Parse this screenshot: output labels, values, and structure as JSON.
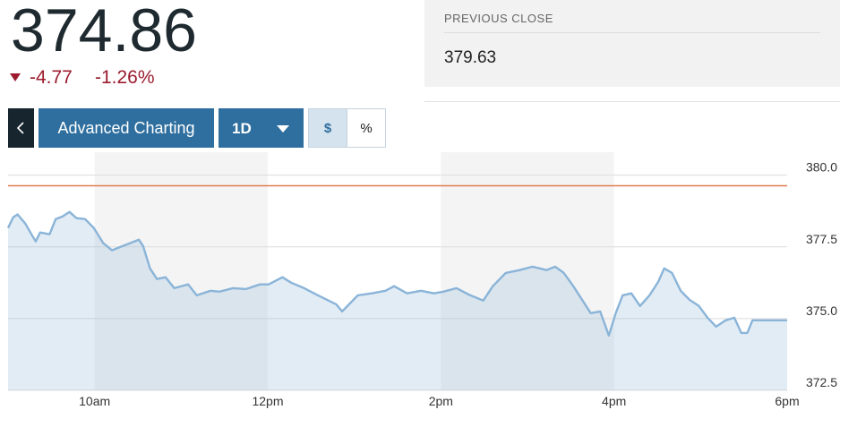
{
  "quote": {
    "last": 374.86,
    "change": -4.77,
    "change_percent": "-1.26%",
    "previous_close_label": "PREVIOUS CLOSE",
    "previous_close": 379.63
  },
  "toolbar": {
    "advanced": "Advanced Charting",
    "range": "1D",
    "dollar": "$",
    "percent": "%"
  },
  "chart_data": {
    "type": "line",
    "x": [
      9.0,
      9.06,
      9.11,
      9.2,
      9.27,
      9.32,
      9.37,
      9.48,
      9.55,
      9.63,
      9.71,
      9.79,
      9.89,
      9.99,
      10.1,
      10.2,
      10.3,
      10.41,
      10.51,
      10.56,
      10.64,
      10.72,
      10.82,
      10.92,
      11.08,
      11.18,
      11.34,
      11.44,
      11.6,
      11.75,
      11.91,
      12.01,
      12.17,
      12.27,
      12.42,
      12.58,
      12.68,
      12.79,
      12.86,
      12.94,
      13.04,
      13.2,
      13.36,
      13.46,
      13.61,
      13.77,
      13.92,
      14.03,
      14.18,
      14.34,
      14.49,
      14.6,
      14.75,
      14.91,
      15.06,
      15.22,
      15.32,
      15.42,
      15.53,
      15.63,
      15.73,
      15.84,
      15.94,
      16.02,
      16.1,
      16.2,
      16.3,
      16.41,
      16.51,
      16.58,
      16.67,
      16.77,
      16.87,
      16.98,
      17.08,
      17.18,
      17.29,
      17.39,
      17.47,
      17.54,
      17.6,
      17.8,
      18.0
    ],
    "values": [
      378.16,
      378.53,
      378.63,
      378.31,
      377.94,
      377.69,
      378.0,
      377.94,
      378.47,
      378.56,
      378.72,
      378.5,
      378.47,
      378.16,
      377.63,
      377.38,
      377.5,
      377.63,
      377.75,
      377.53,
      376.75,
      376.38,
      376.44,
      376.06,
      376.19,
      375.81,
      375.97,
      375.94,
      376.06,
      376.03,
      376.19,
      376.19,
      376.44,
      376.25,
      376.06,
      375.81,
      375.66,
      375.5,
      375.25,
      375.5,
      375.81,
      375.88,
      375.97,
      376.13,
      375.88,
      375.97,
      375.88,
      375.94,
      376.06,
      375.81,
      375.63,
      376.13,
      376.59,
      376.69,
      376.81,
      376.69,
      376.81,
      376.59,
      376.13,
      375.66,
      375.19,
      375.25,
      374.41,
      375.19,
      375.81,
      375.88,
      375.44,
      375.81,
      376.28,
      376.75,
      376.59,
      375.97,
      375.66,
      375.44,
      375.03,
      374.72,
      374.94,
      375.03,
      374.5,
      374.5,
      374.94,
      374.94,
      374.94
    ],
    "color": "#8ab4d8",
    "reference_color": "#e07b4a",
    "xlim": [
      9,
      18
    ],
    "xticks": [
      {
        "value": 10,
        "label": "10am"
      },
      {
        "value": 12,
        "label": "12pm"
      },
      {
        "value": 14,
        "label": "2pm"
      },
      {
        "value": 16,
        "label": "4pm"
      },
      {
        "value": 18,
        "label": "6pm"
      }
    ],
    "ylim": [
      372.5,
      380.8
    ],
    "yticks": [
      372.5,
      {
        "value": 375,
        "label": "375.0"
      },
      377.5,
      {
        "value": 380,
        "label": "380.0"
      }
    ],
    "grid": true
  }
}
